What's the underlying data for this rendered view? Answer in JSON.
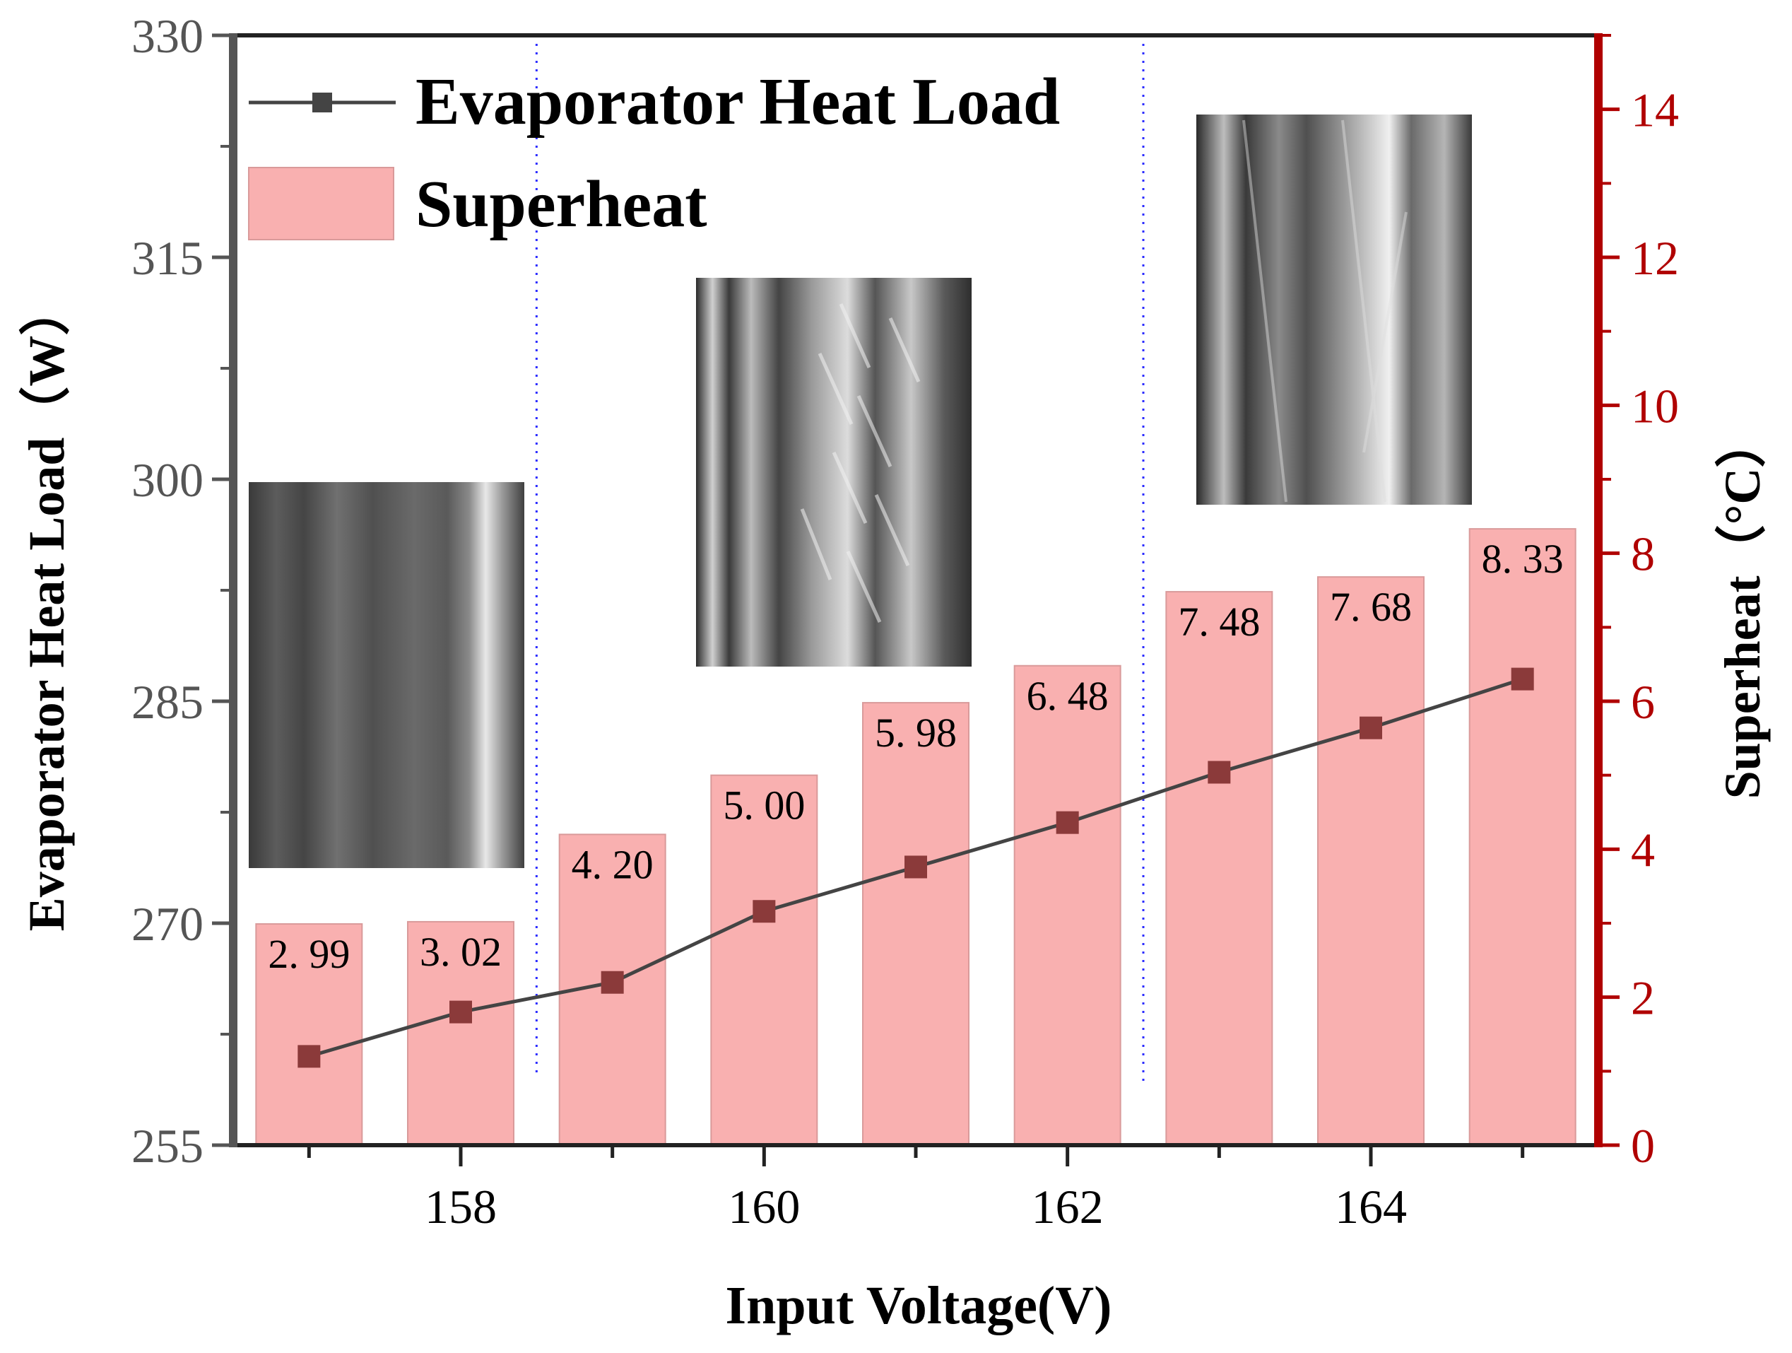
{
  "chart_data": {
    "type": "bar+line",
    "title": "",
    "xlabel": "Input Voltage(V)",
    "ylabel_left": "Evaporator Heat Load（W）",
    "ylabel_right": "Superheat（°C）",
    "x": [
      157,
      158,
      159,
      160,
      161,
      162,
      163,
      164,
      165
    ],
    "x_ticks": [
      158,
      160,
      162,
      164
    ],
    "xlim": [
      156.5,
      165.5
    ],
    "ylim_left": [
      255,
      330
    ],
    "y_ticks_left": [
      255,
      270,
      285,
      300,
      315,
      330
    ],
    "ylim_right": [
      0,
      15
    ],
    "y_ticks_right": [
      0,
      2,
      4,
      6,
      8,
      10,
      12,
      14
    ],
    "series": [
      {
        "name": "Evaporator Heat Load",
        "type": "line",
        "axis": "left",
        "values": [
          261.0,
          264.0,
          266.0,
          270.8,
          273.8,
          276.8,
          280.2,
          283.2,
          286.5
        ]
      },
      {
        "name": "Superheat",
        "type": "bar",
        "axis": "right",
        "values": [
          2.99,
          3.02,
          4.2,
          5.0,
          5.98,
          6.48,
          7.48,
          7.68,
          8.33
        ],
        "labels": [
          "2. 99",
          "3. 02",
          "4. 20",
          "5. 00",
          "5. 98",
          "6. 48",
          "7. 48",
          "7. 68",
          "8. 33"
        ]
      }
    ],
    "legend": [
      "Evaporator Heat Load",
      "Superheat"
    ],
    "legend_position": "top-left",
    "divider_x": [
      158.5,
      162.5
    ],
    "colors": {
      "line": "#444444",
      "marker": "#8b3a3a",
      "bar": "#f9b0b0",
      "bar_edge": "#d99a9a",
      "right_axis": "#b00000",
      "divider": "#2c2cff"
    },
    "insets": [
      "flow-image-1",
      "flow-image-2",
      "flow-image-3"
    ]
  }
}
